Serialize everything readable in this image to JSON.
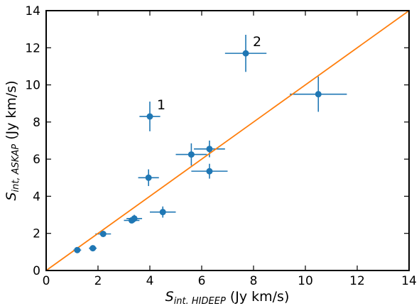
{
  "chart_data": {
    "type": "scatter",
    "xlabel": {
      "main": "S",
      "sub": "int. HIDEEP",
      "unit": " (Jy km/s)"
    },
    "ylabel": {
      "main": "S",
      "sub": "int, ASKAP",
      "unit": " (Jy km/s)"
    },
    "xlim": [
      0,
      14
    ],
    "ylim": [
      0,
      14
    ],
    "xticks": [
      0,
      2,
      4,
      6,
      8,
      10,
      12,
      14
    ],
    "yticks": [
      0,
      2,
      4,
      6,
      8,
      10,
      12,
      14
    ],
    "grid": false,
    "colors": {
      "points": "#1f77b4",
      "line": "#ff7f0e"
    },
    "reference_line": {
      "type": "one-to-one",
      "x": [
        0,
        14
      ],
      "y": [
        0,
        14
      ]
    },
    "points": [
      {
        "x": 1.2,
        "y": 1.1,
        "xerr": 0.15,
        "yerr": 0.1
      },
      {
        "x": 1.8,
        "y": 1.2,
        "xerr": 0.15,
        "yerr": 0.1
      },
      {
        "x": 2.2,
        "y": 1.97,
        "xerr": 0.3,
        "yerr": 0.1
      },
      {
        "x": 3.3,
        "y": 2.7,
        "xerr": 0.3,
        "yerr": 0.15
      },
      {
        "x": 3.4,
        "y": 2.8,
        "xerr": 0.3,
        "yerr": 0.2
      },
      {
        "x": 3.95,
        "y": 5.0,
        "xerr": 0.4,
        "yerr": 0.45
      },
      {
        "x": 4.0,
        "y": 8.3,
        "xerr": 0.4,
        "yerr": 0.8,
        "label": "1"
      },
      {
        "x": 4.5,
        "y": 3.15,
        "xerr": 0.5,
        "yerr": 0.3
      },
      {
        "x": 5.6,
        "y": 6.25,
        "xerr": 0.6,
        "yerr": 0.6
      },
      {
        "x": 6.3,
        "y": 6.55,
        "xerr": 0.6,
        "yerr": 0.45
      },
      {
        "x": 6.3,
        "y": 5.35,
        "xerr": 0.7,
        "yerr": 0.4
      },
      {
        "x": 7.7,
        "y": 11.7,
        "xerr": 0.8,
        "yerr": 1.0,
        "label": "2"
      },
      {
        "x": 10.5,
        "y": 9.5,
        "xerr": 1.1,
        "yerr": 0.95
      }
    ]
  }
}
